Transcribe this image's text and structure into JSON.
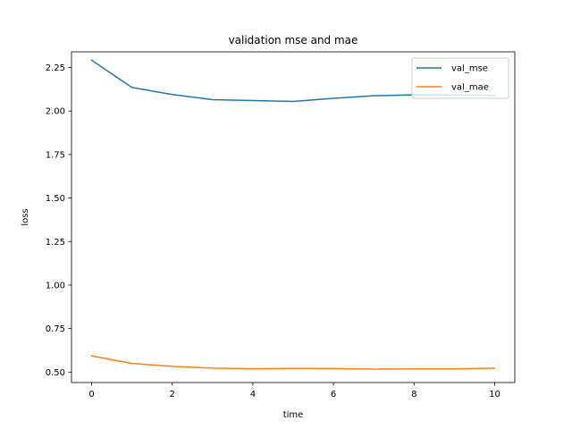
{
  "chart_data": {
    "type": "line",
    "title": "validation mse and mae",
    "xlabel": "time",
    "ylabel": "loss",
    "x": [
      0,
      1,
      2,
      3,
      4,
      5,
      6,
      7,
      8,
      9,
      10
    ],
    "series": [
      {
        "name": "val_mse",
        "color": "#1f77b4",
        "values": [
          2.292,
          2.135,
          2.095,
          2.065,
          2.06,
          2.055,
          2.073,
          2.088,
          2.093,
          2.092,
          2.09
        ]
      },
      {
        "name": "val_mae",
        "color": "#ff7f0e",
        "values": [
          0.593,
          0.55,
          0.533,
          0.523,
          0.519,
          0.521,
          0.52,
          0.517,
          0.518,
          0.518,
          0.523
        ]
      }
    ],
    "xlim": [
      -0.5,
      10.5
    ],
    "ylim": [
      0.44,
      2.34
    ],
    "xticks": [
      0,
      2,
      4,
      6,
      8,
      10
    ],
    "xtick_labels": [
      "0",
      "2",
      "4",
      "6",
      "8",
      "10"
    ],
    "yticks": [
      0.5,
      0.75,
      1.0,
      1.25,
      1.5,
      1.75,
      2.0,
      2.25
    ],
    "ytick_labels": [
      "0.50",
      "0.75",
      "1.00",
      "1.25",
      "1.50",
      "1.75",
      "2.00",
      "2.25"
    ],
    "grid": false,
    "legend_position": "top-right"
  }
}
